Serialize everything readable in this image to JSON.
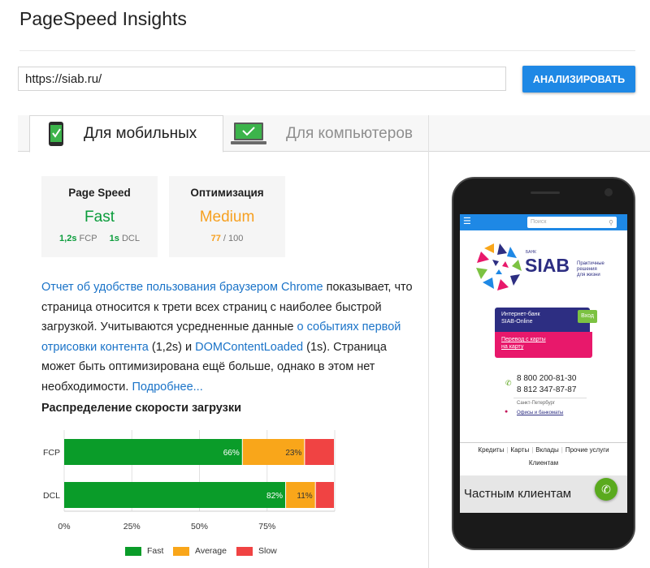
{
  "header": {
    "title": "PageSpeed Insights"
  },
  "search": {
    "url": "https://siab.ru/",
    "analyze_label": "АНАЛИЗИРОВАТЬ"
  },
  "tabs": [
    {
      "label": "Для мобильных",
      "active": true,
      "icon": "mobile-phone-icon"
    },
    {
      "label": "Для компьютеров",
      "active": false,
      "icon": "desktop-monitor-icon"
    }
  ],
  "cards": {
    "page_speed": {
      "title": "Page Speed",
      "rating": "Fast",
      "fcp_value": "1,2s",
      "fcp_label": "FCP",
      "dcl_value": "1s",
      "dcl_label": "DCL"
    },
    "optimization": {
      "title": "Оптимизация",
      "rating": "Medium",
      "score": "77",
      "score_max": "/ 100"
    }
  },
  "description": {
    "link1": "Отчет об удобстве пользования браузером Chrome",
    "text1": " показывает, что страница относится к трети всех страниц с наиболее быстрой загрузкой. Учитываются усредненные данные ",
    "link2": "о событиях первой отрисовки контента",
    "text2": " (1,2s) и ",
    "link3": "DOMContentLoaded",
    "text3": " (1s). Страница может быть оптимизирована ещё больше, однако в этом нет необходимости. ",
    "link4": "Подробнее..."
  },
  "distribution_title": "Распределение скорости загрузки",
  "colors": {
    "fast": "#0a9c29",
    "average": "#f9a61a",
    "slow": "#f04343",
    "accent": "#1e88e5"
  },
  "chart_data": {
    "type": "bar",
    "orientation": "horizontal",
    "stacked": true,
    "categories": [
      "FCP",
      "DCL"
    ],
    "series": [
      {
        "name": "Fast",
        "values": [
          66,
          82
        ],
        "labels": [
          "66%",
          "82%"
        ]
      },
      {
        "name": "Average",
        "values": [
          23,
          11
        ],
        "labels": [
          "23%",
          "11%"
        ]
      },
      {
        "name": "Slow",
        "values": [
          11,
          7
        ],
        "labels": [
          "",
          ""
        ]
      }
    ],
    "xticks": [
      "0%",
      "25%",
      "50%",
      "75%"
    ],
    "xlim": [
      0,
      100
    ],
    "grid": true,
    "legend": "bottom"
  },
  "mobile_preview": {
    "search_placeholder": "Поиск",
    "bank_label": "БАНК",
    "brand": "SIAB",
    "slogan": [
      "Практичные",
      "решения",
      "для жизни"
    ],
    "internet_bank": [
      "Интернет-банк",
      "SIAB-Online"
    ],
    "login_label": "Вход",
    "transfer": [
      "Перевод с карты",
      "на карту"
    ],
    "phone1": "8 800 200-81-30",
    "phone2": "8 812 347-87-87",
    "city": "Санкт-Петербург",
    "offices": "Офисы и банкоматы",
    "nav": [
      "Кредиты",
      "Карты",
      "Вклады",
      "Прочие услуги",
      "Клиентам"
    ],
    "private_clients": "Частным клиентам"
  }
}
